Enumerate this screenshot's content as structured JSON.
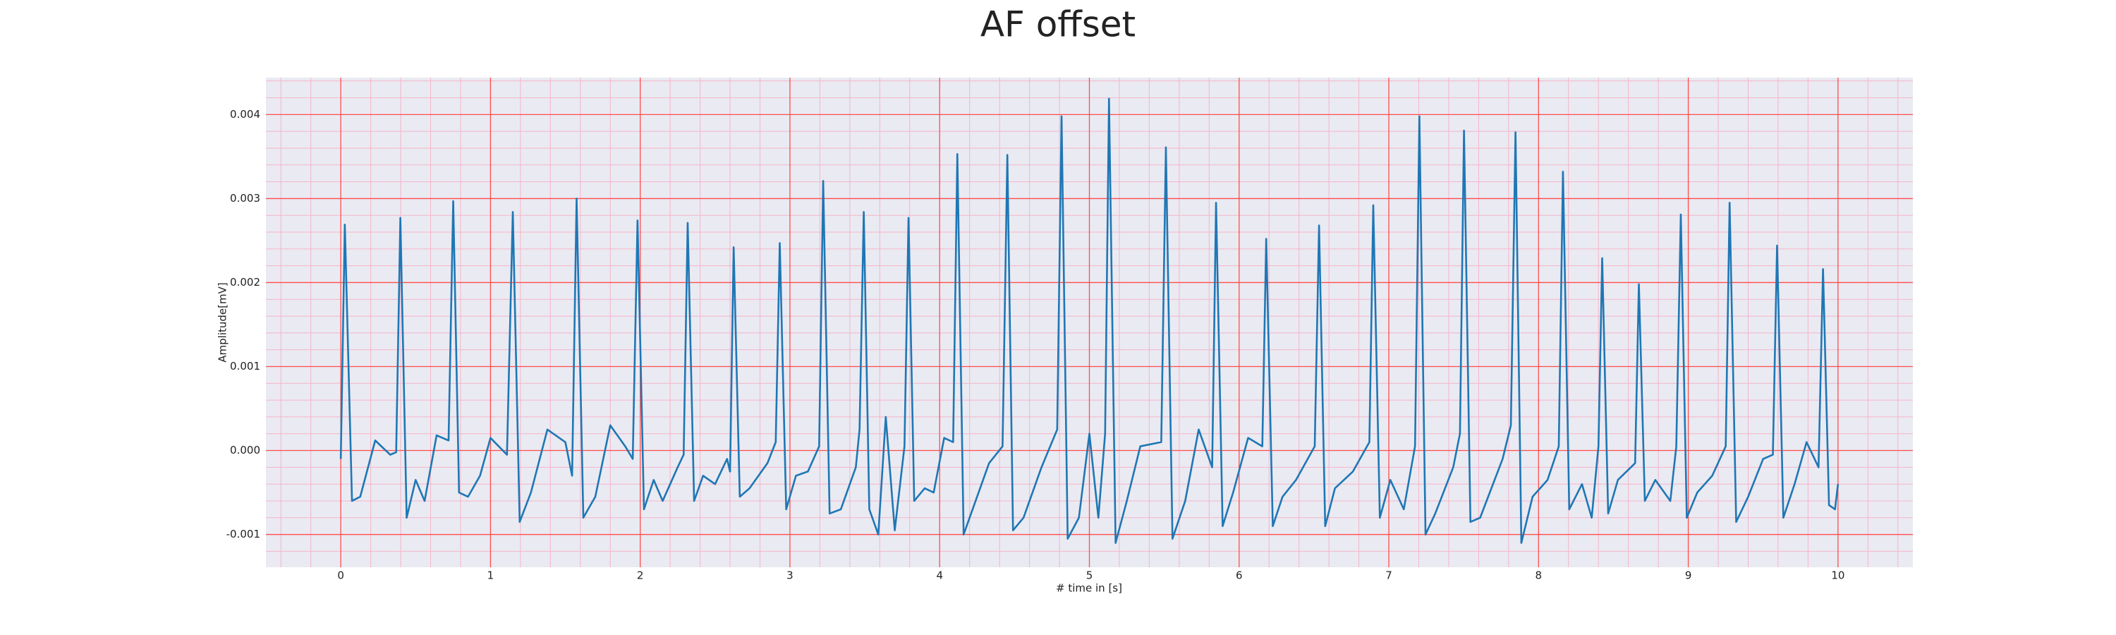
{
  "chart_data": {
    "type": "line",
    "title": "AF offset",
    "x_label": "# time in [s]",
    "y_label": "Amplitude[mV]",
    "xlim": [
      -0.5,
      10.5
    ],
    "ylim": [
      -0.00139,
      0.00444
    ],
    "xticks": [
      0,
      1,
      2,
      3,
      4,
      5,
      6,
      7,
      8,
      9,
      10
    ],
    "yticks": [
      -0.001,
      {
        "value": 0,
        "label": "0.000"
      },
      0.001,
      0.002,
      0.003,
      0.004
    ],
    "grid": true,
    "grid_color": "#ff4d4d",
    "minor_grid": true,
    "minor_grid_color": "#f5b5c8",
    "background": "#eaeaf2",
    "x": [
      0.0,
      0.027,
      0.075,
      0.13,
      0.23,
      0.33,
      0.37,
      0.398,
      0.44,
      0.5,
      0.56,
      0.64,
      0.72,
      0.751,
      0.79,
      0.85,
      0.93,
      1.0,
      1.11,
      1.149,
      1.195,
      1.27,
      1.38,
      1.5,
      1.545,
      1.575,
      1.62,
      1.7,
      1.8,
      1.9,
      1.95,
      1.982,
      2.025,
      2.09,
      2.15,
      2.25,
      2.29,
      2.317,
      2.36,
      2.42,
      2.5,
      2.58,
      2.6,
      2.624,
      2.665,
      2.73,
      2.85,
      2.905,
      2.932,
      2.975,
      3.04,
      3.12,
      3.195,
      3.222,
      3.265,
      3.34,
      3.44,
      3.465,
      3.493,
      3.53,
      3.59,
      3.64,
      3.7,
      3.765,
      3.792,
      3.83,
      3.9,
      3.96,
      4.03,
      4.09,
      4.118,
      4.16,
      4.24,
      4.33,
      4.42,
      4.452,
      4.49,
      4.56,
      4.68,
      4.785,
      4.814,
      4.855,
      4.93,
      5.0,
      5.06,
      5.105,
      5.131,
      5.175,
      5.25,
      5.34,
      5.48,
      5.511,
      5.555,
      5.64,
      5.73,
      5.82,
      5.846,
      5.89,
      5.96,
      6.06,
      6.155,
      6.181,
      6.225,
      6.29,
      6.38,
      6.505,
      6.534,
      6.575,
      6.64,
      6.76,
      6.87,
      6.896,
      6.94,
      7.01,
      7.1,
      7.175,
      7.204,
      7.245,
      7.31,
      7.43,
      7.475,
      7.502,
      7.545,
      7.61,
      7.76,
      7.815,
      7.846,
      7.885,
      7.96,
      8.06,
      8.135,
      8.163,
      8.205,
      8.29,
      8.355,
      8.4,
      8.425,
      8.465,
      8.53,
      8.645,
      8.67,
      8.71,
      8.78,
      8.88,
      8.92,
      8.95,
      8.99,
      9.06,
      9.16,
      9.25,
      9.276,
      9.32,
      9.4,
      9.5,
      9.565,
      9.593,
      9.635,
      9.71,
      9.79,
      9.87,
      9.9,
      9.94,
      9.98,
      10.0
    ],
    "series": [
      {
        "name": "AF offset",
        "color": "#1f77b4",
        "values": [
          -0.0001,
          0.00269,
          -0.0006,
          -0.00055,
          0.00012,
          -5e-05,
          -2e-05,
          0.00277,
          -0.0008,
          -0.00035,
          -0.0006,
          0.00018,
          0.00012,
          0.00297,
          -0.0005,
          -0.00055,
          -0.0003,
          0.00015,
          -5e-05,
          0.00284,
          -0.00085,
          -0.0005,
          0.00025,
          0.0001,
          -0.0003,
          0.003,
          -0.0008,
          -0.00055,
          0.0003,
          5e-05,
          -0.0001,
          0.00274,
          -0.0007,
          -0.00035,
          -0.0006,
          -0.0002,
          -5e-05,
          0.00271,
          -0.0006,
          -0.0003,
          -0.0004,
          -0.0001,
          -0.00025,
          0.00242,
          -0.00055,
          -0.00045,
          -0.00015,
          0.0001,
          0.00247,
          -0.0007,
          -0.0003,
          -0.00025,
          5e-05,
          0.00321,
          -0.00075,
          -0.0007,
          -0.0002,
          0.00025,
          0.00284,
          -0.0007,
          -0.001,
          0.0004,
          -0.00095,
          5e-05,
          0.00277,
          -0.0006,
          -0.00045,
          -0.0005,
          0.00015,
          0.0001,
          0.00353,
          -0.001,
          -0.0006,
          -0.00015,
          5e-05,
          0.00352,
          -0.00095,
          -0.0008,
          -0.0002,
          0.00025,
          0.00398,
          -0.00105,
          -0.0008,
          0.0002,
          -0.0008,
          0.0002,
          0.00419,
          -0.0011,
          -0.0006,
          5e-05,
          0.0001,
          0.00361,
          -0.00105,
          -0.0006,
          0.00025,
          -0.0002,
          0.00295,
          -0.0009,
          -0.0005,
          0.00015,
          5e-05,
          0.00252,
          -0.0009,
          -0.00055,
          -0.00035,
          5e-05,
          0.00268,
          -0.0009,
          -0.00045,
          -0.00025,
          0.0001,
          0.00292,
          -0.0008,
          -0.00035,
          -0.0007,
          5e-05,
          0.00398,
          -0.001,
          -0.00075,
          -0.0002,
          0.0002,
          0.00381,
          -0.00085,
          -0.0008,
          -0.0001,
          0.0003,
          0.00379,
          -0.0011,
          -0.00055,
          -0.00035,
          5e-05,
          0.00332,
          -0.0007,
          -0.0004,
          -0.0008,
          5e-05,
          0.00229,
          -0.00075,
          -0.00035,
          -0.00015,
          0.00198,
          -0.0006,
          -0.00035,
          -0.0006,
          5e-05,
          0.00281,
          -0.0008,
          -0.0005,
          -0.0003,
          5e-05,
          0.00295,
          -0.00085,
          -0.00055,
          -0.0001,
          -5e-05,
          0.00244,
          -0.0008,
          -0.0004,
          0.0001,
          -0.0002,
          0.00216,
          -0.00065,
          -0.0007,
          -0.0004
        ]
      }
    ]
  }
}
